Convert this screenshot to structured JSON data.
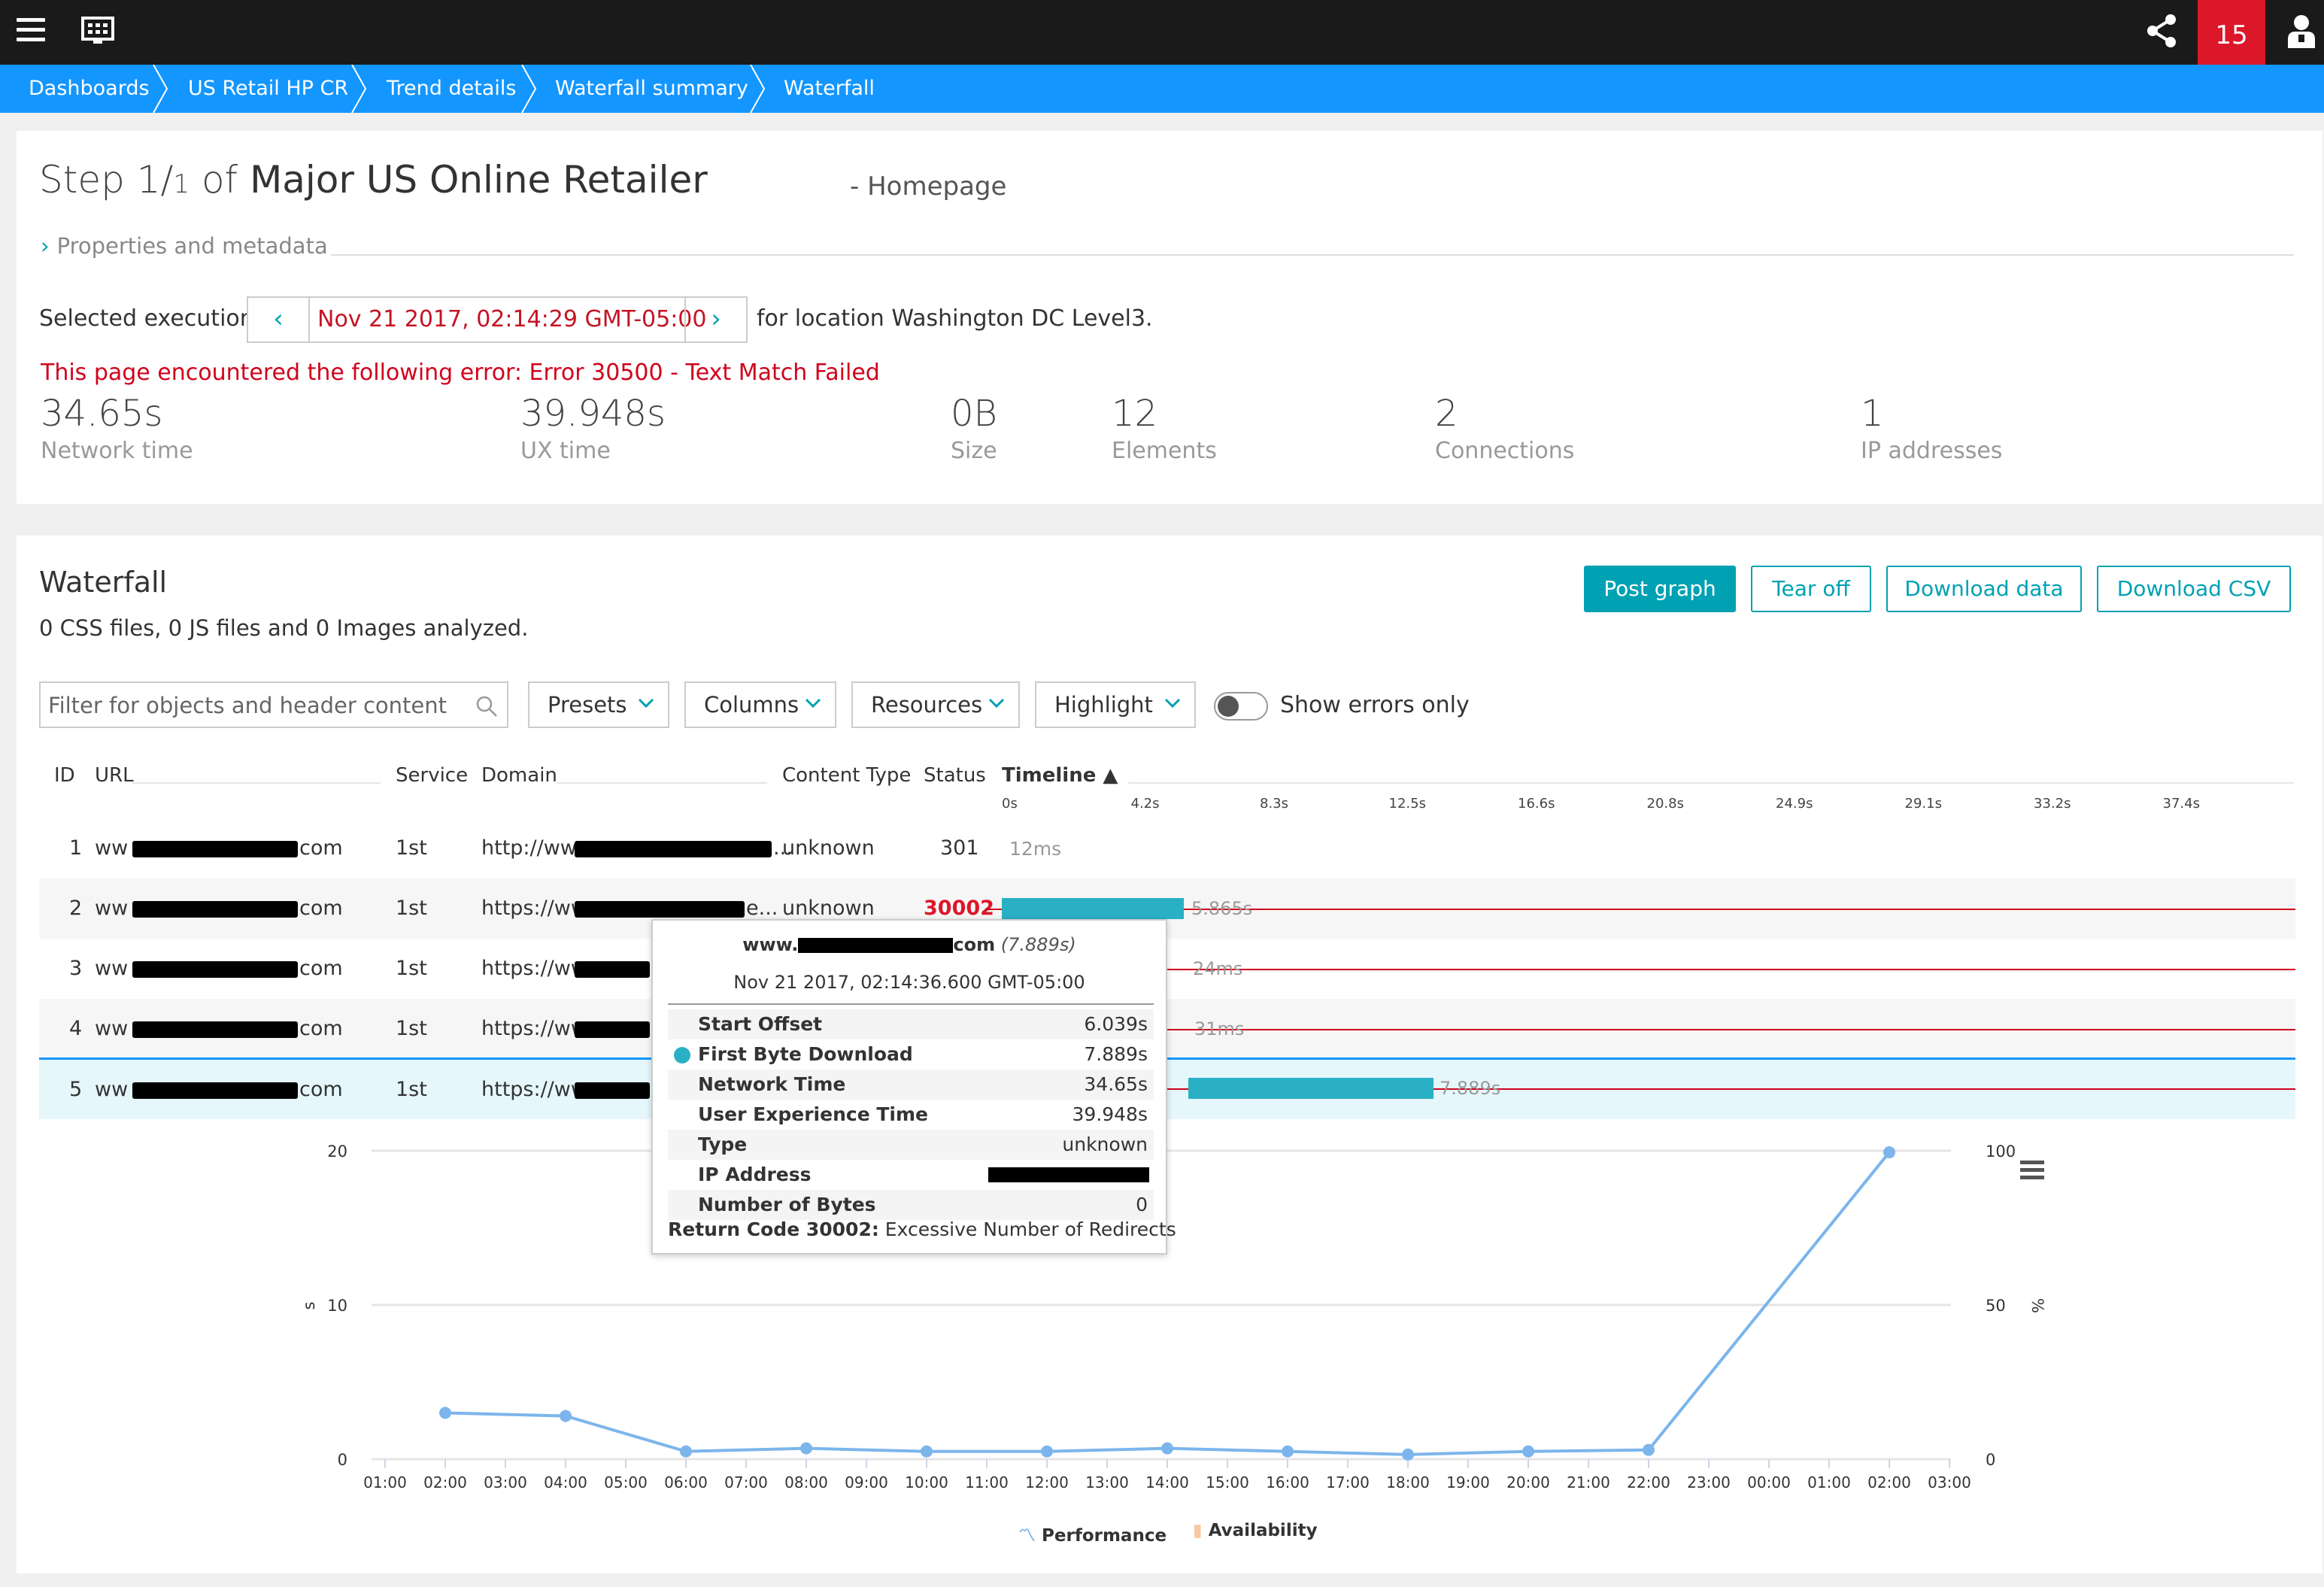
{
  "topbar": {
    "notification_count": "15",
    "icons": [
      "menu-icon",
      "dashboard-icon",
      "share-icon",
      "user-icon"
    ]
  },
  "breadcrumb": [
    "Dashboards",
    "US Retail HP CR",
    "Trend details",
    "Waterfall summary",
    "Waterfall"
  ],
  "header": {
    "step_prefix": "Step 1/",
    "step_total": "1",
    "step_of": "of",
    "test_name": "Major US Online Retailer",
    "page_name": "- Homepage",
    "properties_label": "Properties and metadata",
    "selected_execution_label": "Selected execution",
    "selected_execution_value": "Nov 21 2017, 02:14:29 GMT-05:00",
    "location_text": "for location Washington DC Level3.",
    "error_text": "This page encountered the following error: Error 30500 - Text Match Failed"
  },
  "metrics": [
    {
      "value": "34.65s",
      "label": "Network time"
    },
    {
      "value": "39.948s",
      "label": "UX time"
    },
    {
      "value": "0B",
      "label": "Size"
    },
    {
      "value": "12",
      "label": "Elements"
    },
    {
      "value": "2",
      "label": "Connections"
    },
    {
      "value": "1",
      "label": "IP addresses"
    }
  ],
  "waterfall": {
    "title": "Waterfall",
    "summary": "0 CSS files, 0 JS files and 0 Images analyzed.",
    "buttons": {
      "post_graph": "Post graph",
      "tear_off": "Tear off",
      "download_data": "Download data",
      "download_csv": "Download CSV"
    },
    "filter_placeholder": "Filter for objects and header content",
    "dropdowns": [
      "Presets",
      "Columns",
      "Resources",
      "Highlight"
    ],
    "show_errors_label": "Show errors only",
    "show_errors_on": false,
    "columns": [
      "ID",
      "URL",
      "Service",
      "Domain",
      "Content Type",
      "Status",
      "Timeline"
    ],
    "timeline_ticks": [
      "0s",
      "4.2s",
      "8.3s",
      "12.5s",
      "16.6s",
      "20.8s",
      "24.9s",
      "29.1s",
      "33.2s",
      "37.4s"
    ],
    "rows": [
      {
        "id": "1",
        "url_start": "ww",
        "url_end": "com",
        "service": "1st",
        "domain_start": "http://ww",
        "domain_end": "...",
        "content_type": "unknown",
        "status": "301",
        "timing": "12ms"
      },
      {
        "id": "2",
        "url_start": "ww",
        "url_end": "com",
        "service": "1st",
        "domain_start": "https://ww",
        "domain_end": "e...",
        "content_type": "unknown",
        "status": "30002",
        "timing": "5.865s"
      },
      {
        "id": "3",
        "url_start": "ww",
        "url_end": "com",
        "service": "1st",
        "domain_start": "https://ww",
        "domain_end": "",
        "content_type": "",
        "status": "",
        "timing": "24ms"
      },
      {
        "id": "4",
        "url_start": "ww",
        "url_end": "com",
        "service": "1st",
        "domain_start": "https://ww",
        "domain_end": "",
        "content_type": "",
        "status": "",
        "timing": "31ms"
      },
      {
        "id": "5",
        "url_start": "ww",
        "url_end": "com",
        "service": "1st",
        "domain_start": "https://ww",
        "domain_end": "",
        "content_type": "",
        "status": "",
        "timing": "7.889s"
      }
    ]
  },
  "tooltip": {
    "host_start": "www.",
    "host_end": "com",
    "host_time": "(7.889s)",
    "timestamp": "Nov 21 2017, 02:14:36.600 GMT-05:00",
    "rows": [
      {
        "key": "Start Offset",
        "value": "6.039s"
      },
      {
        "key": "First Byte Download",
        "value": "7.889s"
      },
      {
        "key": "Network Time",
        "value": "34.65s"
      },
      {
        "key": "User Experience Time",
        "value": "39.948s"
      },
      {
        "key": "Type",
        "value": "unknown"
      },
      {
        "key": "IP Address",
        "value": ""
      },
      {
        "key": "Number of Bytes",
        "value": "0"
      }
    ],
    "footer_key": "Return Code 30002:",
    "footer_value": "Excessive Number of Redirects"
  },
  "chart_data": {
    "type": "line",
    "x": [
      "01:00",
      "02:00",
      "03:00",
      "04:00",
      "05:00",
      "06:00",
      "07:00",
      "08:00",
      "09:00",
      "10:00",
      "11:00",
      "12:00",
      "13:00",
      "14:00",
      "15:00",
      "16:00",
      "17:00",
      "18:00",
      "19:00",
      "20:00",
      "21:00",
      "22:00",
      "23:00",
      "00:00",
      "01:00",
      "02:00",
      "03:00"
    ],
    "series": [
      {
        "name": "Performance",
        "color": "#7cb5ec",
        "points": [
          [
            "02:00",
            3.0
          ],
          [
            "04:00",
            2.8
          ],
          [
            "06:00",
            0.5
          ],
          [
            "08:00",
            0.7
          ],
          [
            "10:00",
            0.5
          ],
          [
            "12:00",
            0.5
          ],
          [
            "14:00",
            0.7
          ],
          [
            "16:00",
            0.5
          ],
          [
            "18:00",
            0.3
          ],
          [
            "20:00",
            0.5
          ],
          [
            "22:00",
            0.6
          ],
          [
            "02:00",
            19.9
          ]
        ],
        "point_indices": [
          1,
          3,
          5,
          7,
          9,
          11,
          13,
          15,
          17,
          19,
          21,
          25
        ]
      },
      {
        "name": "Availability",
        "color": "#f7a35c",
        "points": []
      }
    ],
    "y_left": {
      "label": "s",
      "ticks": [
        "0",
        "10",
        "20"
      ],
      "range": [
        0,
        20
      ]
    },
    "y_right": {
      "label": "%",
      "ticks": [
        "0",
        "50",
        "100"
      ],
      "range": [
        0,
        100
      ]
    },
    "grid": true,
    "legend": "bottom-center",
    "menu_icon": "hamburger-icon"
  }
}
